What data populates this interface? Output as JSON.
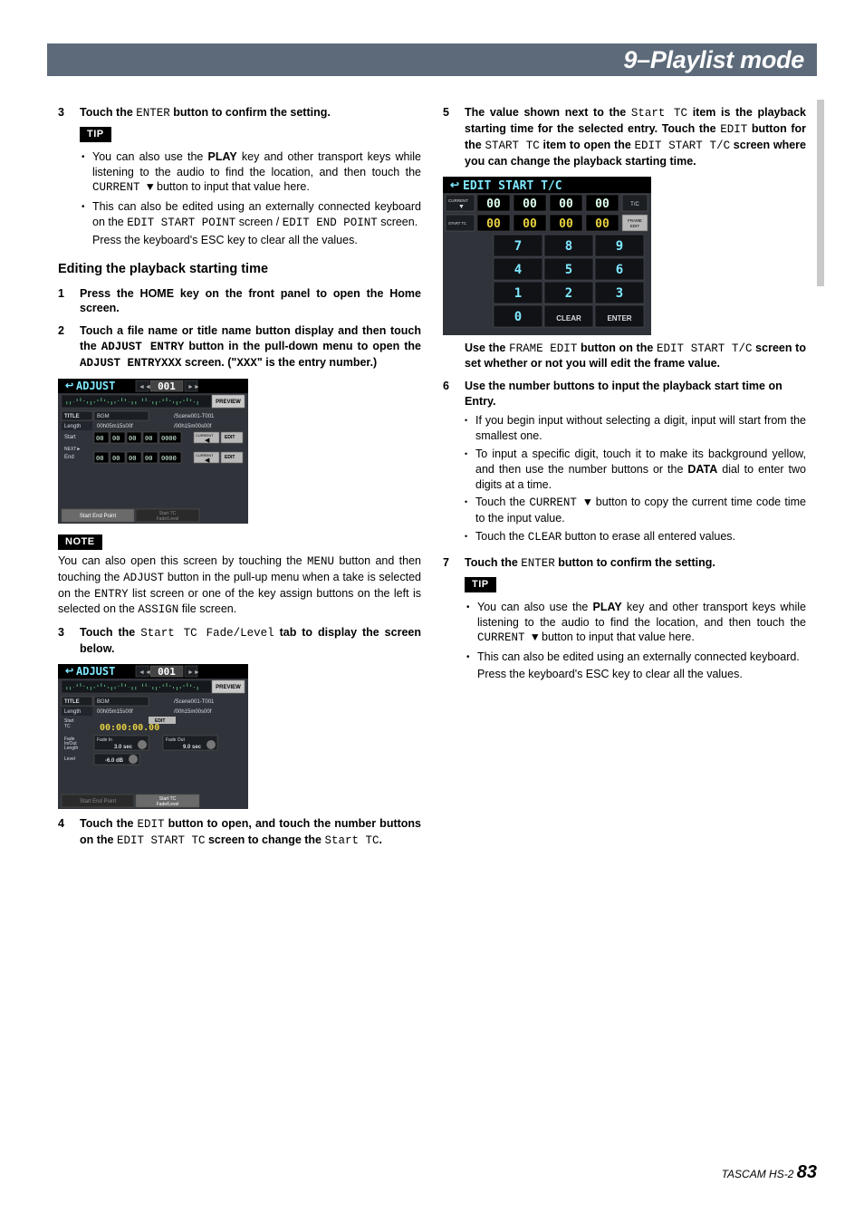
{
  "header": {
    "title": "9–Playlist mode"
  },
  "footer": {
    "product": "TASCAM HS-2",
    "page": "83"
  },
  "colors": {
    "header_bg": "#5c6a7a",
    "screenshot_bg": "#30343a",
    "screenshot_title_bg": "#000000",
    "screenshot_title_fg": "#7fe8ff",
    "screenshot_text": "#d8dde4",
    "screenshot_accent": "#c2c9d4",
    "screenshot_yellow": "#e8d040",
    "screenshot_button_bg": "#1b1e22",
    "keypad_digit_color": "#7fe8ff"
  },
  "left": {
    "step3": {
      "num": "3",
      "pre": "Touch the ",
      "mono": "ENTER",
      "post": " button to confirm the setting."
    },
    "tip_label": "TIP",
    "tip_bullets": [
      {
        "parts": [
          {
            "t": "You can also use the "
          },
          {
            "t": "PLAY",
            "b": true
          },
          {
            "t": " key and other transport keys while listening to the audio to find the location, and then touch the "
          },
          {
            "t": "CURRENT ▼",
            "mono": true
          },
          {
            "t": " button to input that value here."
          }
        ]
      },
      {
        "parts": [
          {
            "t": "This can also be edited using an externally connected keyboard on the "
          },
          {
            "t": "EDIT START POINT",
            "mono": true
          },
          {
            "t": " screen / "
          },
          {
            "t": "EDIT END POINT",
            "mono": true
          },
          {
            "t": " screen."
          }
        ],
        "after": "Press the keyboard's ESC key to clear all the values."
      }
    ],
    "subhead": "Editing the playback starting time",
    "steps": [
      {
        "num": "1",
        "b": true,
        "text": "Press the HOME key on the front panel to open the Home screen."
      },
      {
        "num": "2",
        "b": true,
        "parts": [
          {
            "t": "Touch a file name or title name button display and then touch the "
          },
          {
            "t": "ADJUST ENTRY",
            "mono": true
          },
          {
            "t": " button in the pull-down menu to open the "
          },
          {
            "t": "ADJUST ENTRYXXX",
            "mono": true
          },
          {
            "t": " screen. (\""
          },
          {
            "t": "XXX",
            "mono": true
          },
          {
            "t": "\" is the entry number.)"
          }
        ]
      }
    ],
    "note_label": "NOTE",
    "note_text_parts": [
      {
        "t": "You can also open this screen by touching the "
      },
      {
        "t": "MENU",
        "mono": true
      },
      {
        "t": " button and then touching the "
      },
      {
        "t": "ADJUST",
        "mono": true
      },
      {
        "t": " button in the pull-up menu when a take is selected on the "
      },
      {
        "t": "ENTRY",
        "mono": true
      },
      {
        "t": " list screen or one of the key assign buttons on the left is selected on the "
      },
      {
        "t": "ASSIGN",
        "mono": true
      },
      {
        "t": " file screen."
      }
    ],
    "step3b": {
      "num": "3",
      "parts": [
        {
          "t": "Touch the ",
          "b": true
        },
        {
          "t": "Start TC Fade/Level",
          "mono": true
        },
        {
          "t": " tab to display the screen below.",
          "b": true
        }
      ]
    },
    "step4": {
      "num": "4",
      "parts": [
        {
          "t": "Touch the ",
          "b": true
        },
        {
          "t": "EDIT",
          "mono": true
        },
        {
          "t": " button to open, and touch the number buttons on the ",
          "b": true
        },
        {
          "t": "EDIT START TC",
          "mono": true
        },
        {
          "t": " screen to change the ",
          "b": true
        },
        {
          "t": "Start TC",
          "mono": true
        },
        {
          "t": ".",
          "b": true
        }
      ]
    },
    "adjust_screen_1": {
      "title": "ADJUST",
      "number": "001",
      "preview": "PREVIEW",
      "rows": {
        "title_label": "TITLE",
        "title_val": "BGM",
        "title_path": "/Scene001-T001",
        "length_label": "Length",
        "length_val": "00h05m15s00f",
        "length_path": "/00h15m00s00f",
        "start_label": "Start",
        "start_digits": [
          "00",
          "00",
          "00",
          "00",
          "0000"
        ],
        "start_sub": "→",
        "start_current": "CURRENT ◀",
        "start_edit": "EDIT",
        "next_label": "NEXT ►",
        "end_label": "End",
        "end_digits": [
          "00",
          "00",
          "00",
          "00",
          "0000"
        ],
        "end_current": "CURRENT ◀",
        "end_edit": "EDIT"
      },
      "tabs": [
        "Start End Point",
        "Start TC\nFade/Level"
      ]
    },
    "adjust_screen_2": {
      "title": "ADJUST",
      "number": "001",
      "preview": "PREVIEW",
      "rows": {
        "title_label": "TITLE",
        "title_val": "BGM",
        "title_path": "/Scene001-T001",
        "length_label": "Length",
        "length_val": "00h05m15s00f",
        "length_path": "/00h15m00s00f",
        "starttc_label": "Start\nTC",
        "starttc_edit": "EDIT",
        "starttc_val": "00:00:00.00",
        "fade_label": "Fade\nIn/Out\nLength",
        "fadein_label": "Fade In",
        "fadein_val": "3.0 sec",
        "fadeout_label": "Fade Out",
        "fadeout_val": "9.0 sec",
        "level_label": "Level",
        "level_val": "-6.0 dB"
      },
      "tabs": [
        "Start End Point",
        "Start TC\nFade/Level"
      ]
    }
  },
  "right": {
    "step5": {
      "num": "5",
      "parts": [
        {
          "t": "The value shown next to the ",
          "b": true
        },
        {
          "t": "Start TC",
          "mono": true
        },
        {
          "t": " item is the playback starting time for the selected entry. Touch the ",
          "b": true
        },
        {
          "t": "EDIT",
          "mono": true
        },
        {
          "t": " button for the ",
          "b": true
        },
        {
          "t": "START TC",
          "mono": true
        },
        {
          "t": " item to open the ",
          "b": true
        },
        {
          "t": "EDIT START T/C",
          "mono": true
        },
        {
          "t": " screen where you can change the playback starting time.",
          "b": true
        }
      ]
    },
    "keypad": {
      "title": "EDIT START T/C",
      "current_label": "CURRENT ▼",
      "current_digits": [
        "00",
        "00",
        "00",
        "00"
      ],
      "current_right": "T/C",
      "starttc_label": "START TC",
      "starttc_digits": [
        "00",
        "00",
        "00",
        "00"
      ],
      "starttc_right": "FRAME\nEDIT",
      "grid": [
        [
          "7",
          "8",
          "9"
        ],
        [
          "4",
          "5",
          "6"
        ],
        [
          "1",
          "2",
          "3"
        ],
        [
          "0",
          "CLEAR",
          "ENTER"
        ]
      ]
    },
    "after_keypad_parts": [
      {
        "t": "Use the ",
        "b": true
      },
      {
        "t": "FRAME EDIT",
        "mono": true
      },
      {
        "t": " button on the ",
        "b": true
      },
      {
        "t": "EDIT START T/C",
        "mono": true
      },
      {
        "t": " screen to set whether or not you will edit the frame value.",
        "b": true
      }
    ],
    "step6": {
      "num": "6",
      "b_text": "Use the number buttons to input the playback start time on Entry.",
      "sub": [
        "If you begin input without selecting a digit, input will start from the smallest one.",
        "To input a specific digit, touch it to make its background yellow, and then use the number buttons or the DATA dial to enter two digits at a time.",
        "Touch the CURRENT ▼ button to copy the current time code time to the input value.",
        "Touch the CLEAR button to erase all entered values."
      ],
      "sub_parts": [
        [
          {
            "t": "If you begin input without selecting a digit, input will start from the smallest one."
          }
        ],
        [
          {
            "t": "To input a specific digit, touch it to make its background yellow, and then use the number buttons or the "
          },
          {
            "t": "DATA",
            "b": true
          },
          {
            "t": " dial to enter two digits at a time."
          }
        ],
        [
          {
            "t": "Touch the "
          },
          {
            "t": "CURRENT ▼",
            "mono": true
          },
          {
            "t": " button to copy the current time code time to the input value."
          }
        ],
        [
          {
            "t": "Touch the "
          },
          {
            "t": "CLEAR",
            "mono": true
          },
          {
            "t": " button to erase all entered values."
          }
        ]
      ]
    },
    "step7": {
      "num": "7",
      "parts": [
        {
          "t": "Touch the ",
          "b": true
        },
        {
          "t": "ENTER",
          "mono": true
        },
        {
          "t": " button to confirm the setting.",
          "b": true
        }
      ]
    },
    "tip_label": "TIP",
    "tip_bullets": [
      {
        "parts": [
          {
            "t": "You can also use the "
          },
          {
            "t": "PLAY",
            "b": true
          },
          {
            "t": " key and other transport keys while listening to the audio to find the location, and then touch the "
          },
          {
            "t": "CURRENT ▼",
            "mono": true
          },
          {
            "t": " button to input that value here."
          }
        ]
      },
      {
        "parts": [
          {
            "t": "This can also be edited using an externally connected keyboard."
          }
        ],
        "after": "Press the keyboard's ESC key to clear all the values."
      }
    ]
  }
}
